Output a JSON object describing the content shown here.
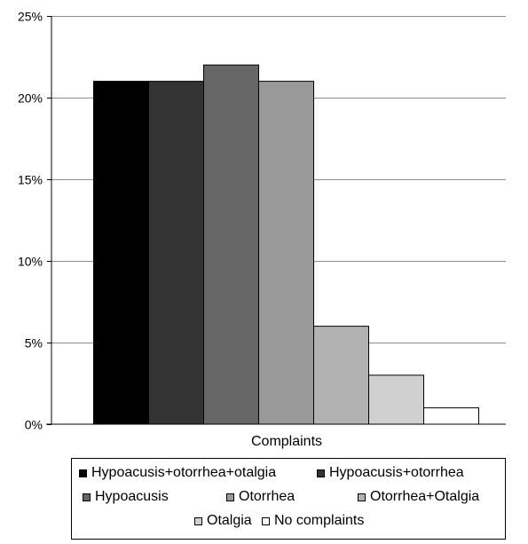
{
  "chart_data": {
    "type": "bar",
    "xlabel": "Complaints",
    "ylabel": "",
    "title": "",
    "ylim": [
      0,
      25
    ],
    "yticks": [
      "0%",
      "5%",
      "10%",
      "15%",
      "20%",
      "25%"
    ],
    "grid": true,
    "legend_position": "bottom",
    "series": [
      {
        "name": "Hypoacusis+otorrhea+otalgia",
        "value": 21,
        "color": "#000000"
      },
      {
        "name": "Hypoacusis+otorrhea",
        "value": 21,
        "color": "#333333"
      },
      {
        "name": "Hypoacusis",
        "value": 22,
        "color": "#666666"
      },
      {
        "name": "Otorrhea",
        "value": 21,
        "color": "#999999"
      },
      {
        "name": "Otorrhea+Otalgia",
        "value": 6,
        "color": "#b2b2b2"
      },
      {
        "name": "Otalgia",
        "value": 3,
        "color": "#d0d0d0"
      },
      {
        "name": "No complaints",
        "value": 1,
        "color": "#ffffff"
      }
    ]
  }
}
